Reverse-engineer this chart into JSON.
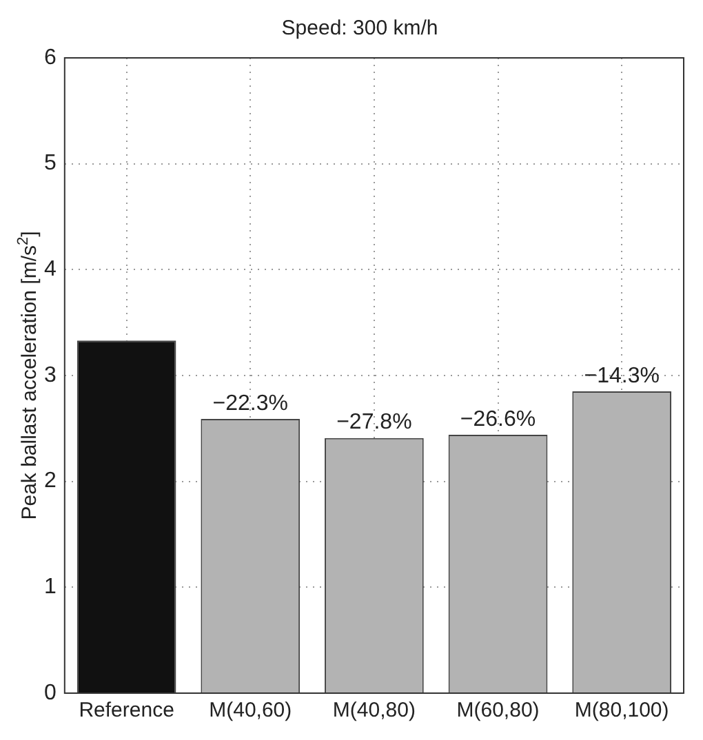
{
  "chart_data": {
    "type": "bar",
    "title": "Speed: 300 km/h",
    "ylabel": "Peak ballast acceleration [m/s$^{2}$]",
    "categories": [
      "Reference",
      "M(40,60)",
      "M(40,80)",
      "M(60,80)",
      "M(80,100)"
    ],
    "values": [
      3.33,
      2.59,
      2.41,
      2.44,
      2.85
    ],
    "colors": [
      "#111111",
      "#b3b3b3",
      "#b3b3b3",
      "#b3b3b3",
      "#b3b3b3"
    ],
    "annotations": [
      {
        "text": "−22.3%",
        "x": "M(40,60)",
        "y": 2.59
      },
      {
        "text": "−27.8%",
        "x": "M(40,80)",
        "y": 2.41
      },
      {
        "text": "−26.6%",
        "x": "M(60,80)",
        "y": 2.44
      },
      {
        "text": "−14.3%",
        "x": "M(80,100)",
        "y": 2.85
      }
    ],
    "ylim": [
      0,
      6
    ],
    "yticks": [
      0,
      1,
      2,
      3,
      4,
      5,
      6
    ],
    "grid": true
  }
}
